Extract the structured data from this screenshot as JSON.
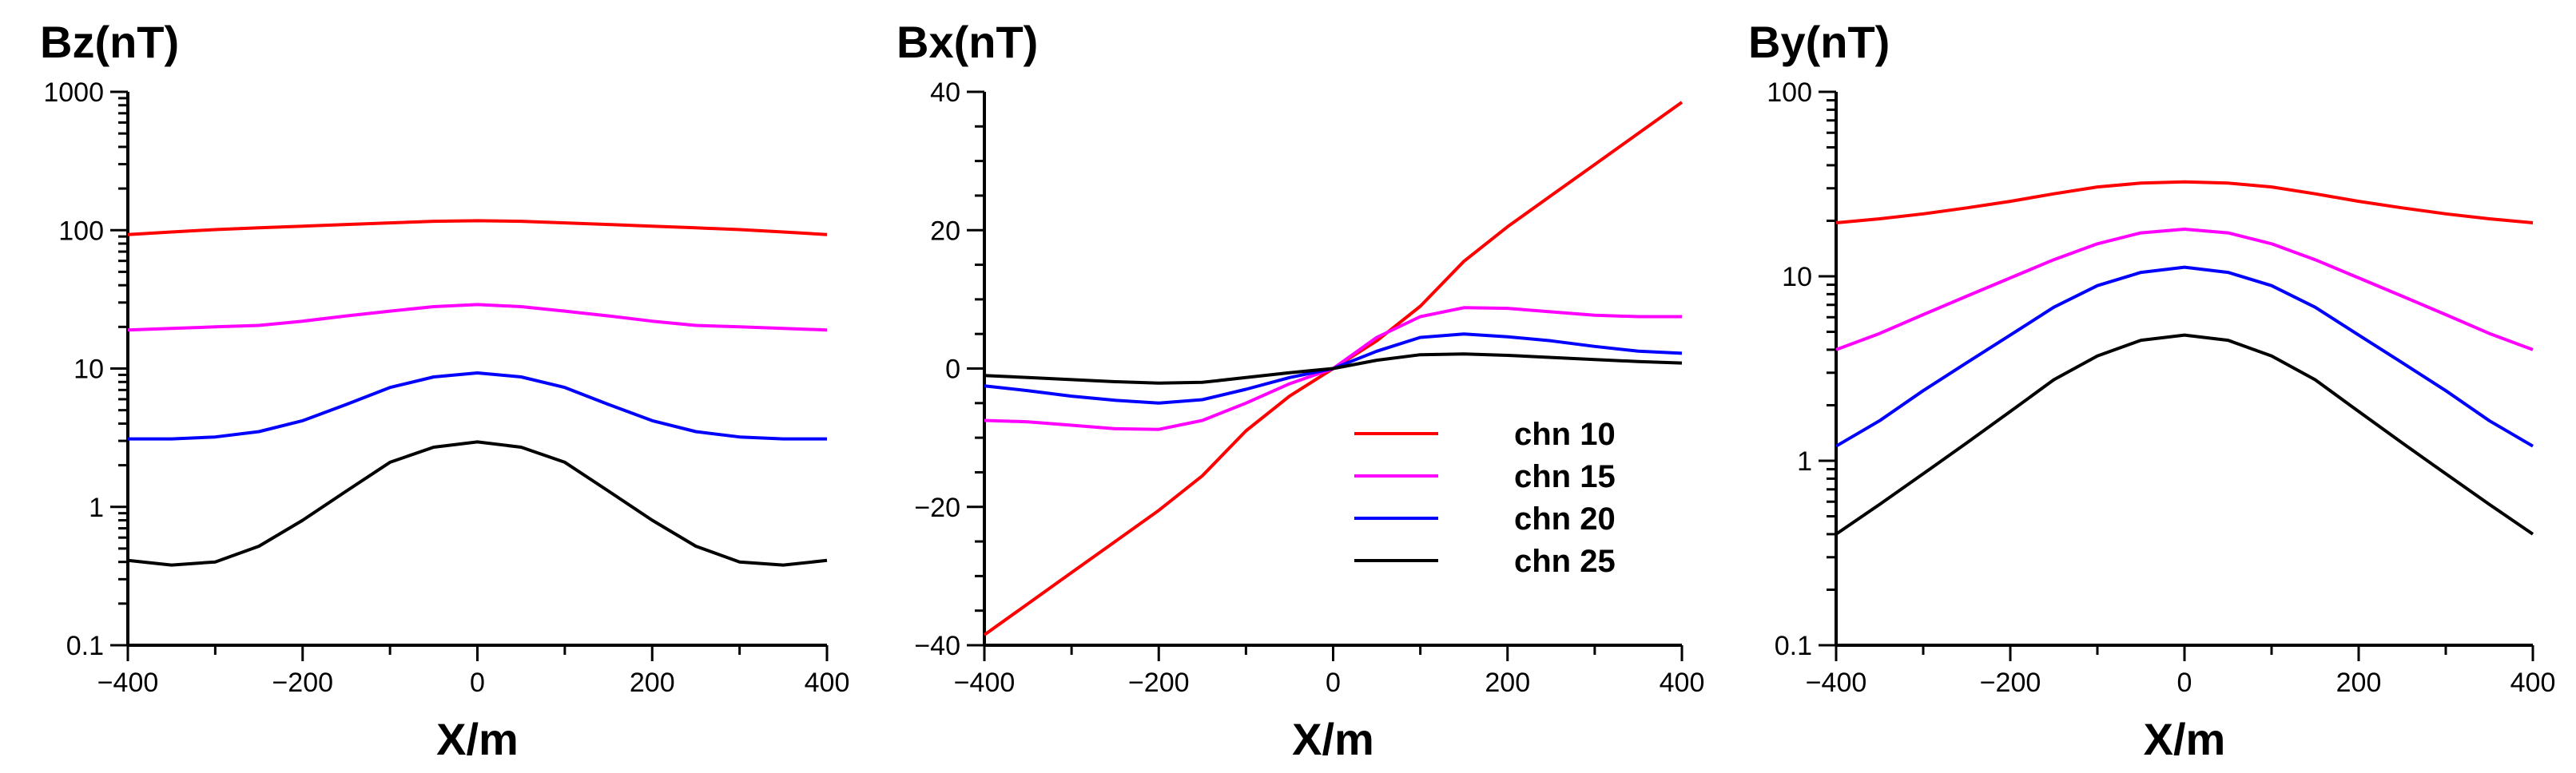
{
  "chart_data": [
    {
      "type": "line",
      "title": "",
      "ylabel": "Bz(nT)",
      "xlabel": "X/m",
      "yscale": "log",
      "ylim": [
        0.1,
        1000
      ],
      "xlim": [
        -400,
        400
      ],
      "xticks": [
        -400,
        -200,
        0,
        200,
        400
      ],
      "xtick_labels": [
        "−400",
        "−200",
        "0",
        "200",
        "400"
      ],
      "yticks": [
        0.1,
        1,
        10,
        100,
        1000
      ],
      "ytick_labels": [
        "0.1",
        "1",
        "10",
        "100",
        "1000"
      ],
      "x": [
        -400,
        -350,
        -300,
        -250,
        -200,
        -150,
        -100,
        -50,
        0,
        50,
        100,
        150,
        200,
        250,
        300,
        350,
        400
      ],
      "series": [
        {
          "name": "chn 10",
          "color": "#ff0000",
          "values": [
            93,
            97,
            101,
            104,
            107,
            110,
            113,
            116,
            117,
            116,
            113,
            110,
            107,
            104,
            101,
            97,
            93
          ]
        },
        {
          "name": "chn 15",
          "color": "#ff00ff",
          "values": [
            19,
            19.5,
            20,
            20.5,
            22,
            24,
            26,
            28,
            29,
            28,
            26,
            24,
            22,
            20.5,
            20,
            19.5,
            19
          ]
        },
        {
          "name": "chn 20",
          "color": "#0000ff",
          "values": [
            3.1,
            3.1,
            3.2,
            3.5,
            4.2,
            5.5,
            7.3,
            8.7,
            9.3,
            8.7,
            7.3,
            5.5,
            4.2,
            3.5,
            3.2,
            3.1,
            3.1
          ]
        },
        {
          "name": "chn 25",
          "color": "#000000",
          "values": [
            0.41,
            0.38,
            0.4,
            0.52,
            0.8,
            1.3,
            2.1,
            2.7,
            2.95,
            2.7,
            2.1,
            1.3,
            0.8,
            0.52,
            0.4,
            0.38,
            0.41
          ]
        }
      ]
    },
    {
      "type": "line",
      "title": "",
      "ylabel": "Bx(nT)",
      "xlabel": "X/m",
      "yscale": "linear",
      "ylim": [
        -40,
        40
      ],
      "xlim": [
        -400,
        400
      ],
      "xticks": [
        -400,
        -200,
        0,
        200,
        400
      ],
      "xtick_labels": [
        "−400",
        "−200",
        "0",
        "200",
        "400"
      ],
      "yticks": [
        -40,
        -20,
        0,
        20,
        40
      ],
      "ytick_labels": [
        "−40",
        "−20",
        "0",
        "20",
        "40"
      ],
      "legend": [
        "chn 10",
        "chn 15",
        "chn 20",
        "chn 25"
      ],
      "legend_position": "center-right",
      "x": [
        -400,
        -350,
        -300,
        -250,
        -200,
        -150,
        -100,
        -50,
        0,
        50,
        100,
        150,
        200,
        250,
        300,
        350,
        400
      ],
      "series": [
        {
          "name": "chn 10",
          "color": "#ff0000",
          "values": [
            -38.5,
            -34,
            -29.5,
            -25,
            -20.5,
            -15.5,
            -9,
            -4,
            0,
            4,
            9,
            15.5,
            20.5,
            25,
            29.5,
            34,
            38.5
          ]
        },
        {
          "name": "chn 15",
          "color": "#ff00ff",
          "values": [
            -7.5,
            -7.7,
            -8.2,
            -8.7,
            -8.8,
            -7.5,
            -5,
            -2.2,
            0,
            4.5,
            7.5,
            8.8,
            8.7,
            8.2,
            7.7,
            7.5,
            7.5
          ]
        },
        {
          "name": "chn 20",
          "color": "#0000ff",
          "values": [
            -2.5,
            -3.2,
            -4,
            -4.6,
            -5,
            -4.5,
            -3,
            -1.3,
            0,
            2.5,
            4.5,
            5,
            4.6,
            4,
            3.2,
            2.5,
            2.2
          ]
        },
        {
          "name": "chn 25",
          "color": "#000000",
          "values": [
            -1,
            -1.3,
            -1.6,
            -1.9,
            -2.1,
            -2,
            -1.3,
            -0.6,
            0,
            1.2,
            2,
            2.1,
            1.9,
            1.6,
            1.3,
            1,
            0.8
          ]
        }
      ]
    },
    {
      "type": "line",
      "title": "",
      "ylabel": "By(nT)",
      "xlabel": "X/m",
      "yscale": "log",
      "ylim": [
        0.1,
        100
      ],
      "xlim": [
        -400,
        400
      ],
      "xticks": [
        -400,
        -200,
        0,
        200,
        400
      ],
      "xtick_labels": [
        "−400",
        "−200",
        "0",
        "200",
        "400"
      ],
      "yticks": [
        0.1,
        1,
        10,
        100
      ],
      "ytick_labels": [
        "0.1",
        "1",
        "10",
        "100"
      ],
      "x": [
        -400,
        -350,
        -300,
        -250,
        -200,
        -150,
        -100,
        -50,
        0,
        50,
        100,
        150,
        200,
        250,
        300,
        350,
        400
      ],
      "series": [
        {
          "name": "chn 10",
          "color": "#ff0000",
          "values": [
            19.5,
            20.5,
            21.8,
            23.5,
            25.5,
            28,
            30.5,
            32,
            32.5,
            32,
            30.5,
            28,
            25.5,
            23.5,
            21.8,
            20.5,
            19.5
          ]
        },
        {
          "name": "chn 15",
          "color": "#ff00ff",
          "values": [
            4,
            4.9,
            6.2,
            7.8,
            9.8,
            12.3,
            15,
            17.2,
            18,
            17.2,
            15,
            12.3,
            9.8,
            7.8,
            6.2,
            4.9,
            4
          ]
        },
        {
          "name": "chn 20",
          "color": "#0000ff",
          "values": [
            1.2,
            1.65,
            2.4,
            3.4,
            4.8,
            6.8,
            8.9,
            10.5,
            11.2,
            10.5,
            8.9,
            6.8,
            4.8,
            3.4,
            2.4,
            1.65,
            1.2
          ]
        },
        {
          "name": "chn 25",
          "color": "#000000",
          "values": [
            0.4,
            0.58,
            0.85,
            1.25,
            1.85,
            2.75,
            3.7,
            4.5,
            4.8,
            4.5,
            3.7,
            2.75,
            1.85,
            1.25,
            0.85,
            0.58,
            0.4
          ]
        }
      ]
    }
  ]
}
